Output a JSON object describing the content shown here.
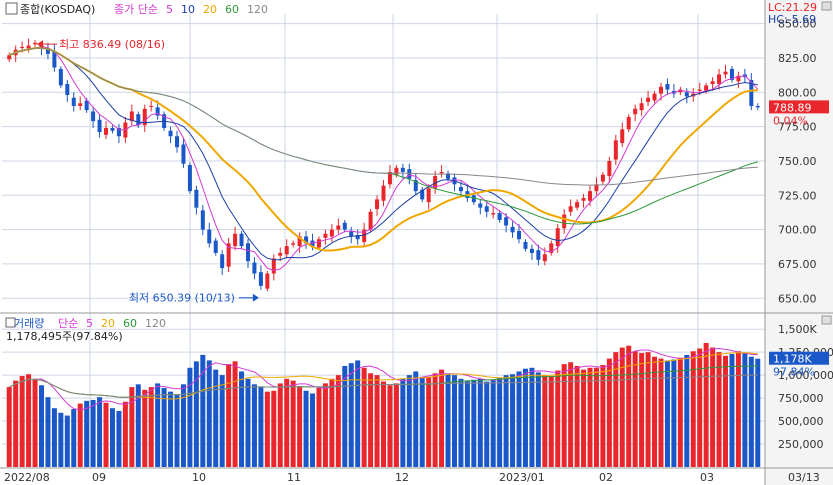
{
  "price_panel": {
    "legend": {
      "name": "종합(KOSDAQ)",
      "type": "종가 단순",
      "ma": [
        "5",
        "10",
        "20",
        "60",
        "120"
      ]
    },
    "right_top": {
      "lc": "LC:21.29",
      "hc": "HC:-5.69"
    },
    "annot_high": "최고 836.49 (08/16)",
    "annot_low": "최저 650.39 (10/13)",
    "current_price": "788.89",
    "current_change": "0.04%",
    "price_ticks": [
      "850.00",
      "825.00",
      "800.00",
      "775.00",
      "750.00",
      "725.00",
      "700.00",
      "675.00",
      "650.00"
    ]
  },
  "volume_panel": {
    "legend": {
      "name": "거래량",
      "type": "단순",
      "ma": [
        "5",
        "20",
        "60",
        "120"
      ]
    },
    "info": "1,178,495주(97.84%)",
    "current_volume": "1,178K",
    "current_pct": "97.84%",
    "volume_ticks": [
      "1,500K",
      "1,250,000",
      "1,000,000",
      "750,000",
      "500,000",
      "250,000"
    ]
  },
  "x_ticks": [
    "2022/08",
    "09",
    "10",
    "11",
    "12",
    "2023/01",
    "02",
    "03",
    "03/13"
  ],
  "colors": {
    "up": "#e8262b",
    "down": "#1a57c8",
    "ma5": "#d43ad4",
    "ma10": "#1b3fa6",
    "ma20": "#f0a800",
    "ma60": "#2e9a3a",
    "ma120": "#888888",
    "grid": "#cdd6e6"
  },
  "chart_data": {
    "type": "candlestick",
    "x_range": [
      "2022-08-01",
      "2023-03-13"
    ],
    "ylim": [
      640,
      857
    ],
    "volume_ylim": [
      0,
      1600000
    ],
    "series": [
      {
        "name": "price_close",
        "values": [
          827,
          831,
          833,
          834,
          836,
          832,
          828,
          818,
          805,
          798,
          790,
          792,
          787,
          779,
          771,
          774,
          772,
          768,
          778,
          786,
          776,
          788,
          790,
          783,
          774,
          768,
          760,
          748,
          728,
          716,
          700,
          690,
          683,
          672,
          690,
          697,
          688,
          677,
          668,
          659,
          668,
          679,
          683,
          688,
          690,
          695,
          690,
          688,
          693,
          697,
          700,
          703,
          700,
          695,
          693,
          700,
          713,
          722,
          732,
          742,
          745,
          742,
          737,
          728,
          722,
          730,
          739,
          742,
          737,
          733,
          728,
          723,
          720,
          716,
          713,
          712,
          707,
          703,
          698,
          693,
          686,
          683,
          678,
          682,
          690,
          701,
          711,
          717,
          720,
          723,
          728,
          733,
          740,
          750,
          765,
          773,
          782,
          788,
          792,
          796,
          799,
          804,
          802,
          799,
          802,
          797,
          799,
          802,
          805,
          808,
          813,
          815,
          809,
          812,
          811,
          790,
          789
        ]
      },
      {
        "name": "volume",
        "values": [
          870000,
          940000,
          990000,
          1010000,
          960000,
          890000,
          760000,
          640000,
          590000,
          560000,
          630000,
          690000,
          720000,
          730000,
          760000,
          700000,
          640000,
          610000,
          710000,
          870000,
          900000,
          840000,
          870000,
          910000,
          860000,
          820000,
          790000,
          900000,
          1080000,
          1150000,
          1220000,
          1160000,
          1060000,
          1000000,
          1120000,
          1150000,
          1040000,
          960000,
          900000,
          870000,
          820000,
          830000,
          910000,
          960000,
          940000,
          880000,
          830000,
          800000,
          860000,
          910000,
          960000,
          1000000,
          1100000,
          1130000,
          1160000,
          1080000,
          1020000,
          1000000,
          930000,
          890000,
          910000,
          960000,
          1000000,
          1040000,
          980000,
          980000,
          1020000,
          1060000,
          1020000,
          1000000,
          960000,
          940000,
          950000,
          960000,
          930000,
          950000,
          970000,
          1000000,
          1010000,
          1040000,
          1070000,
          1080000,
          1030000,
          1000000,
          990000,
          1050000,
          1120000,
          1140000,
          1100000,
          1060000,
          1080000,
          1080000,
          1110000,
          1180000,
          1250000,
          1300000,
          1320000,
          1260000,
          1240000,
          1250000,
          1200000,
          1180000,
          1160000,
          1170000,
          1190000,
          1220000,
          1260000,
          1290000,
          1350000,
          1300000,
          1250000,
          1210000,
          1230000,
          1260000,
          1240000,
          1200000,
          1178495
        ]
      }
    ]
  }
}
